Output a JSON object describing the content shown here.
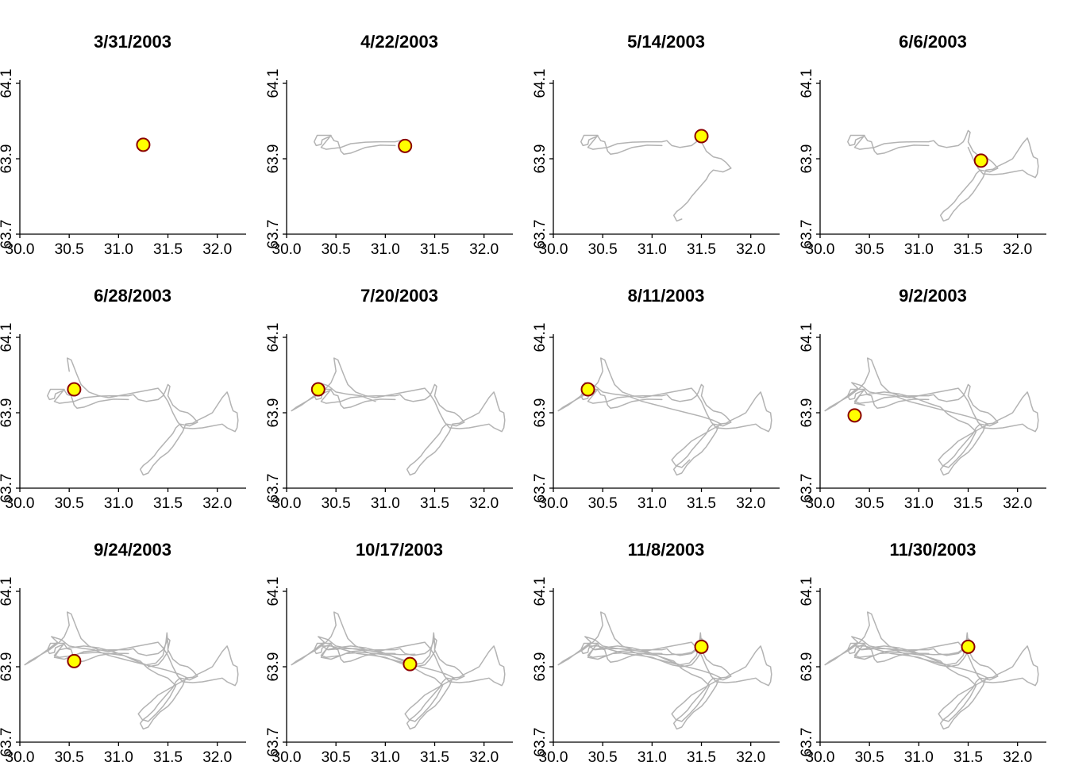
{
  "chart_data": {
    "type": "line",
    "layout_grid": "3 rows x 4 columns of small-multiple panels",
    "xlim": [
      30.0,
      32.3
    ],
    "ylim": [
      63.7,
      64.1
    ],
    "x_ticks": [
      30.0,
      30.5,
      31.0,
      31.5,
      32.0
    ],
    "x_tick_labels": [
      "30.0",
      "30.5",
      "31.0",
      "31.5",
      "32.0"
    ],
    "y_ticks": [
      63.7,
      63.9,
      64.1
    ],
    "y_tick_labels": [
      "63.7",
      "63.9",
      "64.1"
    ],
    "y_tick_labels_rotated": true,
    "grid": false,
    "track_color": "#b3b3b3",
    "marker_fill": "#ffff00",
    "marker_edge": "#8b0000",
    "track_points": [
      [
        31.1,
        63.935
      ],
      [
        30.95,
        63.936
      ],
      [
        30.8,
        63.93
      ],
      [
        30.65,
        63.915
      ],
      [
        30.58,
        63.912
      ],
      [
        30.55,
        63.92
      ],
      [
        30.52,
        63.945
      ],
      [
        30.48,
        63.948
      ],
      [
        30.45,
        63.96
      ],
      [
        30.4,
        63.955
      ],
      [
        30.36,
        63.95
      ],
      [
        30.35,
        63.938
      ],
      [
        30.3,
        63.935
      ],
      [
        30.28,
        63.945
      ],
      [
        30.31,
        63.962
      ],
      [
        30.45,
        63.962
      ],
      [
        30.35,
        63.93
      ],
      [
        30.4,
        63.925
      ],
      [
        30.55,
        63.93
      ],
      [
        30.65,
        63.94
      ],
      [
        30.8,
        63.944
      ],
      [
        30.95,
        63.945
      ],
      [
        31.1,
        63.945
      ],
      [
        31.15,
        63.948
      ],
      [
        31.2,
        63.935
      ],
      [
        31.28,
        63.93
      ],
      [
        31.4,
        63.935
      ],
      [
        31.45,
        63.945
      ],
      [
        31.47,
        63.955
      ],
      [
        31.5,
        63.975
      ],
      [
        31.52,
        63.97
      ],
      [
        31.5,
        63.945
      ],
      [
        31.55,
        63.92
      ],
      [
        31.62,
        63.905
      ],
      [
        31.7,
        63.9
      ],
      [
        31.75,
        63.89
      ],
      [
        31.8,
        63.875
      ],
      [
        31.72,
        63.865
      ],
      [
        31.62,
        63.87
      ],
      [
        31.58,
        63.86
      ],
      [
        31.55,
        63.845
      ],
      [
        31.5,
        63.83
      ],
      [
        31.45,
        63.815
      ],
      [
        31.4,
        63.8
      ],
      [
        31.36,
        63.785
      ],
      [
        31.3,
        63.77
      ],
      [
        31.25,
        63.76
      ],
      [
        31.22,
        63.75
      ],
      [
        31.25,
        63.735
      ],
      [
        31.3,
        63.74
      ],
      [
        31.35,
        63.76
      ],
      [
        31.42,
        63.78
      ],
      [
        31.5,
        63.795
      ],
      [
        31.55,
        63.81
      ],
      [
        31.6,
        63.83
      ],
      [
        31.65,
        63.85
      ],
      [
        31.68,
        63.87
      ],
      [
        31.75,
        63.872
      ],
      [
        31.8,
        63.88
      ],
      [
        31.88,
        63.89
      ],
      [
        31.95,
        63.9
      ],
      [
        32.0,
        63.92
      ],
      [
        32.05,
        63.94
      ],
      [
        32.1,
        63.955
      ],
      [
        32.12,
        63.94
      ],
      [
        32.14,
        63.92
      ],
      [
        32.16,
        63.905
      ],
      [
        32.2,
        63.9
      ],
      [
        32.21,
        63.88
      ],
      [
        32.2,
        63.86
      ],
      [
        32.18,
        63.85
      ],
      [
        32.1,
        63.86
      ],
      [
        32.05,
        63.87
      ],
      [
        31.95,
        63.865
      ],
      [
        31.85,
        63.86
      ],
      [
        31.75,
        63.858
      ],
      [
        31.65,
        63.86
      ],
      [
        31.6,
        63.875
      ],
      [
        31.55,
        63.9
      ],
      [
        31.5,
        63.93
      ],
      [
        31.45,
        63.95
      ],
      [
        31.4,
        63.965
      ],
      [
        31.3,
        63.96
      ],
      [
        31.2,
        63.955
      ],
      [
        31.1,
        63.95
      ],
      [
        31.0,
        63.945
      ],
      [
        30.9,
        63.94
      ],
      [
        30.8,
        63.945
      ],
      [
        30.7,
        63.955
      ],
      [
        30.62,
        63.975
      ],
      [
        30.58,
        64.0
      ],
      [
        30.55,
        64.02
      ],
      [
        30.52,
        64.04
      ],
      [
        30.48,
        64.045
      ],
      [
        30.5,
        64.01
      ],
      [
        30.45,
        63.98
      ],
      [
        30.4,
        63.965
      ],
      [
        30.3,
        63.945
      ],
      [
        30.2,
        63.93
      ],
      [
        30.1,
        63.915
      ],
      [
        30.05,
        63.905
      ],
      [
        30.15,
        63.92
      ],
      [
        30.28,
        63.945
      ],
      [
        30.38,
        63.965
      ],
      [
        30.32,
        63.98
      ],
      [
        30.42,
        63.972
      ],
      [
        30.5,
        63.955
      ],
      [
        30.6,
        63.95
      ],
      [
        30.75,
        63.945
      ],
      [
        30.9,
        63.93
      ],
      [
        31.05,
        63.92
      ],
      [
        31.2,
        63.91
      ],
      [
        31.35,
        63.9
      ],
      [
        31.5,
        63.89
      ],
      [
        31.62,
        63.88
      ],
      [
        31.7,
        63.87
      ],
      [
        31.6,
        63.855
      ],
      [
        31.5,
        63.84
      ],
      [
        31.4,
        63.825
      ],
      [
        31.32,
        63.805
      ],
      [
        31.25,
        63.79
      ],
      [
        31.2,
        63.775
      ],
      [
        31.24,
        63.76
      ],
      [
        31.3,
        63.755
      ],
      [
        31.38,
        63.775
      ],
      [
        31.45,
        63.795
      ],
      [
        31.52,
        63.82
      ],
      [
        31.58,
        63.85
      ],
      [
        31.5,
        63.87
      ],
      [
        31.4,
        63.88
      ],
      [
        31.3,
        63.895
      ],
      [
        31.22,
        63.915
      ],
      [
        31.1,
        63.925
      ],
      [
        30.95,
        63.94
      ],
      [
        30.8,
        63.95
      ],
      [
        30.65,
        63.955
      ],
      [
        30.5,
        63.95
      ],
      [
        30.4,
        63.945
      ],
      [
        30.35,
        63.925
      ],
      [
        30.45,
        63.92
      ],
      [
        30.6,
        63.935
      ],
      [
        30.78,
        63.938
      ],
      [
        30.9,
        63.935
      ],
      [
        31.05,
        63.93
      ],
      [
        31.18,
        63.915
      ],
      [
        31.28,
        63.905
      ],
      [
        31.38,
        63.91
      ],
      [
        31.45,
        63.93
      ],
      [
        31.48,
        63.965
      ],
      [
        31.49,
        63.99
      ],
      [
        31.5,
        63.96
      ],
      [
        31.5,
        63.94
      ],
      [
        31.45,
        63.92
      ],
      [
        31.4,
        63.905
      ],
      [
        31.3,
        63.9
      ],
      [
        31.2,
        63.905
      ],
      [
        31.1,
        63.915
      ],
      [
        31.0,
        63.925
      ],
      [
        30.88,
        63.93
      ],
      [
        30.72,
        63.935
      ],
      [
        30.58,
        63.945
      ],
      [
        30.45,
        63.955
      ],
      [
        30.36,
        63.955
      ],
      [
        30.42,
        63.945
      ],
      [
        30.55,
        63.948
      ],
      [
        30.7,
        63.948
      ],
      [
        30.85,
        63.942
      ],
      [
        31.0,
        63.935
      ],
      [
        31.15,
        63.932
      ],
      [
        31.3,
        63.933
      ],
      [
        31.4,
        63.938
      ],
      [
        31.45,
        63.948
      ],
      [
        31.47,
        63.955
      ]
    ],
    "panels": [
      {
        "title": "3/31/2003",
        "track_count": 1,
        "position": [
          31.25,
          63.937
        ]
      },
      {
        "title": "4/22/2003",
        "track_count": 25,
        "position": [
          31.2,
          63.934
        ]
      },
      {
        "title": "5/14/2003",
        "track_count": 50,
        "position": [
          31.5,
          63.96
        ]
      },
      {
        "title": "6/6/2003",
        "track_count": 80,
        "position": [
          31.63,
          63.895
        ]
      },
      {
        "title": "6/28/2003",
        "track_count": 95,
        "position": [
          30.55,
          63.962
        ]
      },
      {
        "title": "7/20/2003",
        "track_count": 110,
        "position": [
          30.32,
          63.962
        ]
      },
      {
        "title": "8/11/2003",
        "track_count": 125,
        "position": [
          30.35,
          63.962
        ]
      },
      {
        "title": "9/2/2003",
        "track_count": 140,
        "position": [
          30.35,
          63.893
        ]
      },
      {
        "title": "9/24/2003",
        "track_count": 155,
        "position": [
          30.55,
          63.915
        ]
      },
      {
        "title": "10/17/2003",
        "track_count": 170,
        "position": [
          31.25,
          63.907
        ]
      },
      {
        "title": "11/8/2003",
        "track_count": 182,
        "position": [
          31.5,
          63.953
        ]
      },
      {
        "title": "11/30/2003",
        "track_count": 190,
        "position": [
          31.5,
          63.953
        ]
      }
    ]
  }
}
